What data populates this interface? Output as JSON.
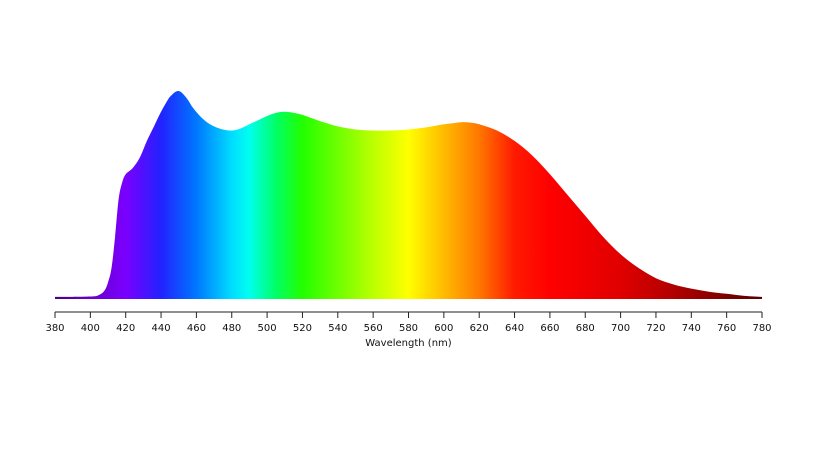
{
  "chart_data": {
    "type": "area",
    "title": "",
    "xlabel": "Wavelength (nm)",
    "ylabel": "",
    "xlim": [
      380,
      780
    ],
    "ylim": [
      0,
      1.0
    ],
    "grid": false,
    "legend": "none",
    "x_ticks": [
      380,
      400,
      420,
      440,
      460,
      480,
      500,
      520,
      540,
      560,
      580,
      600,
      620,
      640,
      660,
      680,
      700,
      720,
      740,
      760,
      780
    ],
    "x_tick_labels": [
      "380",
      "400",
      "420",
      "440",
      "460",
      "480",
      "500",
      "520",
      "540",
      "560",
      "580",
      "600",
      "620",
      "640",
      "660",
      "680",
      "700",
      "720",
      "740",
      "760",
      "780"
    ],
    "series": [
      {
        "x": [
          380,
          400,
          405,
          408,
          410,
          412,
          414,
          416,
          418,
          420,
          424,
          428,
          432,
          436,
          440,
          444,
          446,
          448,
          450,
          452,
          455,
          458,
          462,
          466,
          470,
          475,
          480,
          485,
          490,
          495,
          500,
          505,
          510,
          515,
          520,
          530,
          540,
          550,
          560,
          570,
          580,
          590,
          600,
          605,
          610,
          615,
          620,
          630,
          640,
          650,
          660,
          670,
          680,
          690,
          700,
          710,
          720,
          730,
          740,
          750,
          760,
          770,
          780
        ],
        "values": [
          0.01,
          0.012,
          0.02,
          0.04,
          0.08,
          0.15,
          0.3,
          0.48,
          0.56,
          0.6,
          0.63,
          0.68,
          0.76,
          0.83,
          0.9,
          0.96,
          0.98,
          0.995,
          1.0,
          0.99,
          0.96,
          0.92,
          0.88,
          0.85,
          0.83,
          0.815,
          0.81,
          0.82,
          0.84,
          0.86,
          0.88,
          0.895,
          0.9,
          0.895,
          0.885,
          0.855,
          0.83,
          0.815,
          0.81,
          0.81,
          0.815,
          0.825,
          0.84,
          0.845,
          0.85,
          0.848,
          0.84,
          0.81,
          0.76,
          0.69,
          0.6,
          0.5,
          0.4,
          0.3,
          0.215,
          0.15,
          0.1,
          0.07,
          0.05,
          0.035,
          0.025,
          0.015,
          0.01
        ]
      }
    ],
    "color_stops": [
      {
        "nm": 380,
        "color": "#4b0082"
      },
      {
        "nm": 400,
        "color": "#6a00c8"
      },
      {
        "nm": 420,
        "color": "#7a00ff"
      },
      {
        "nm": 440,
        "color": "#2222ff"
      },
      {
        "nm": 460,
        "color": "#0077ff"
      },
      {
        "nm": 480,
        "color": "#00ddff"
      },
      {
        "nm": 490,
        "color": "#00ffee"
      },
      {
        "nm": 505,
        "color": "#00ff66"
      },
      {
        "nm": 520,
        "color": "#22ff00"
      },
      {
        "nm": 560,
        "color": "#bbff00"
      },
      {
        "nm": 580,
        "color": "#ffff00"
      },
      {
        "nm": 600,
        "color": "#ffbb00"
      },
      {
        "nm": 620,
        "color": "#ff7700"
      },
      {
        "nm": 640,
        "color": "#ff1a00"
      },
      {
        "nm": 660,
        "color": "#ff0000"
      },
      {
        "nm": 700,
        "color": "#e00000"
      },
      {
        "nm": 740,
        "color": "#a00000"
      },
      {
        "nm": 780,
        "color": "#5a0000"
      }
    ]
  }
}
